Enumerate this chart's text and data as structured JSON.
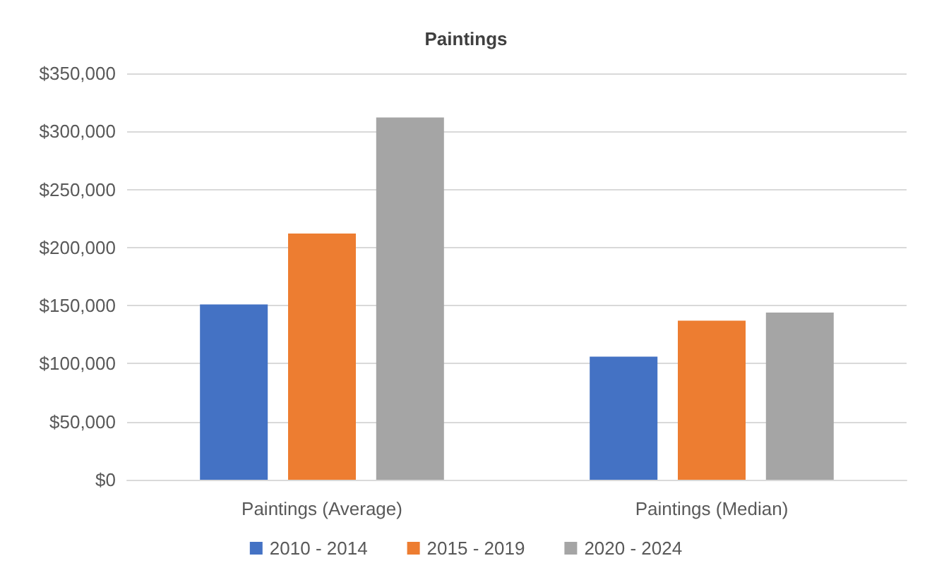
{
  "chart_data": {
    "type": "bar",
    "title": "Paintings",
    "categories": [
      "Paintings (Average)",
      "Paintings (Median)"
    ],
    "series": [
      {
        "name": "2010 - 2014",
        "color": "#4472c4",
        "values": [
          151000,
          106000
        ]
      },
      {
        "name": "2015 - 2019",
        "color": "#ed7d31",
        "values": [
          212000,
          137000
        ]
      },
      {
        "name": "2020 - 2024",
        "color": "#a5a5a5",
        "values": [
          312000,
          144000
        ]
      }
    ],
    "ylim": [
      0,
      350000
    ],
    "yticks": [
      {
        "value": 0,
        "label": "$0"
      },
      {
        "value": 50000,
        "label": "$50,000"
      },
      {
        "value": 100000,
        "label": "$100,000"
      },
      {
        "value": 150000,
        "label": "$150,000"
      },
      {
        "value": 200000,
        "label": "$200,000"
      },
      {
        "value": 250000,
        "label": "$250,000"
      },
      {
        "value": 300000,
        "label": "$300,000"
      },
      {
        "value": 350000,
        "label": "$350,000"
      }
    ],
    "grid": "y",
    "legend": "bottom"
  }
}
